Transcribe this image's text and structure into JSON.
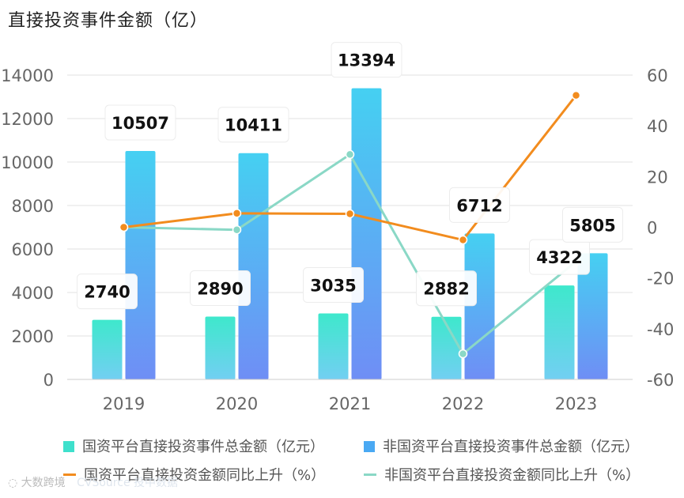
{
  "footer": {
    "brand": "大数跨境",
    "watermark": "CVSource 投中数据"
  },
  "chart_data": {
    "type": "bar",
    "title": "直接投资事件金额（亿）",
    "categories": [
      "2019",
      "2020",
      "2021",
      "2022",
      "2023"
    ],
    "ylim": [
      0,
      14000
    ],
    "yticks": [
      "0",
      "2000",
      "4000",
      "6000",
      "8000",
      "10000",
      "12000",
      "14000"
    ],
    "y2lim": [
      -60,
      60
    ],
    "y2ticks": [
      "-60",
      "-40",
      "-20",
      "0",
      "20",
      "40",
      "60"
    ],
    "series": [
      {
        "name": "国资平台直接投资事件总金额（亿元）",
        "type": "bar",
        "axis": "left",
        "values": [
          2740,
          2890,
          3035,
          2882,
          4322
        ],
        "labels": [
          "2740",
          "2890",
          "3035",
          "2882",
          "4322"
        ],
        "color": "#3ee0d0",
        "color_end": "#6fd6f0"
      },
      {
        "name": "非国资平台直接投资事件总金额（亿元）",
        "type": "bar",
        "axis": "left",
        "values": [
          10507,
          10411,
          13394,
          6712,
          5805
        ],
        "labels": [
          "10507",
          "10411",
          "13394",
          "6712",
          "5805"
        ],
        "color": "#44cdf2",
        "color_end": "#6d8ff5"
      },
      {
        "name": "国资平台直接投资金额同比上升（%）",
        "type": "line",
        "axis": "right",
        "values": [
          0,
          5.5,
          5.3,
          -5,
          52
        ],
        "color": "#f28c1e"
      },
      {
        "name": "非国资平台直接投资金额同比上升（%）",
        "type": "line",
        "axis": "right",
        "values": [
          0,
          -1,
          28.7,
          -49.9,
          -13.5
        ],
        "color": "#8ad8c6"
      }
    ]
  }
}
